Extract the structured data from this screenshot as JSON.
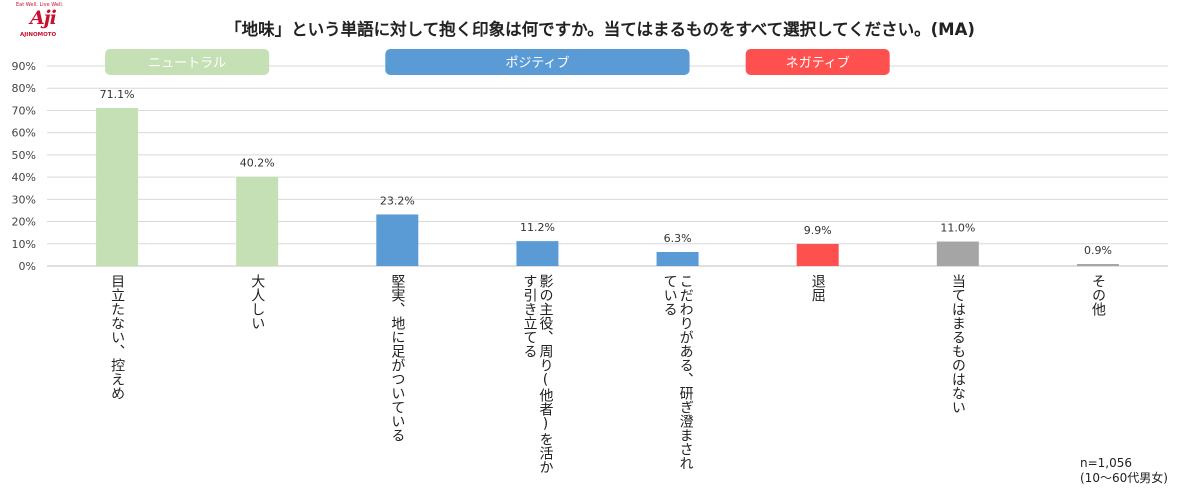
{
  "logo": {
    "tagline": "Eat Well, Live Well.",
    "mark": "Aji",
    "wordmark": "AJINOMOTO"
  },
  "title": "「地味」という単語に対して抱く印象は何ですか。当てはまるものをすべて選択してください。(MA)",
  "note": {
    "n": "n=1,056",
    "sample": "(10〜60代男女)"
  },
  "colors": {
    "neutral": "#c5e0b4",
    "positive": "#5b9bd5",
    "negative": "#ff5050",
    "other": "#a5a5a5",
    "grid": "#d9d9d9",
    "axis": "#bfbfbf"
  },
  "chart_data": {
    "type": "bar",
    "title": "「地味」という単語に対して抱く印象は何ですか。当てはまるものをすべて選択してください。(MA)",
    "categories": [
      {
        "lines": [
          "目立たない、控えめ"
        ],
        "value": 71.1,
        "label": "71.1%",
        "group": "neutral"
      },
      {
        "lines": [
          "大人しい"
        ],
        "value": 40.2,
        "label": "40.2%",
        "group": "neutral"
      },
      {
        "lines": [
          "堅実、地に足がついている"
        ],
        "value": 23.2,
        "label": "23.2%",
        "group": "positive"
      },
      {
        "lines": [
          "影の主役、周り(他者)を活か",
          "す引き立てる"
        ],
        "value": 11.2,
        "label": "11.2%",
        "group": "positive"
      },
      {
        "lines": [
          "こだわりがある、研ぎ澄まされ",
          "ている"
        ],
        "value": 6.3,
        "label": "6.3%",
        "group": "positive"
      },
      {
        "lines": [
          "退屈"
        ],
        "value": 9.9,
        "label": "9.9%",
        "group": "negative"
      },
      {
        "lines": [
          "当てはまるものはない"
        ],
        "value": 11.0,
        "label": "11.0%",
        "group": "other"
      },
      {
        "lines": [
          "その他"
        ],
        "value": 0.9,
        "label": "0.9%",
        "group": "other"
      }
    ],
    "ylim": [
      0,
      90
    ],
    "yticks": [
      "0%",
      "10%",
      "20%",
      "30%",
      "40%",
      "50%",
      "60%",
      "70%",
      "80%",
      "90%"
    ],
    "grid": true,
    "legend": [
      {
        "label": "ニュートラル",
        "group": "neutral"
      },
      {
        "label": "ポジティブ",
        "group": "positive"
      },
      {
        "label": "ネガティブ",
        "group": "negative"
      }
    ]
  }
}
